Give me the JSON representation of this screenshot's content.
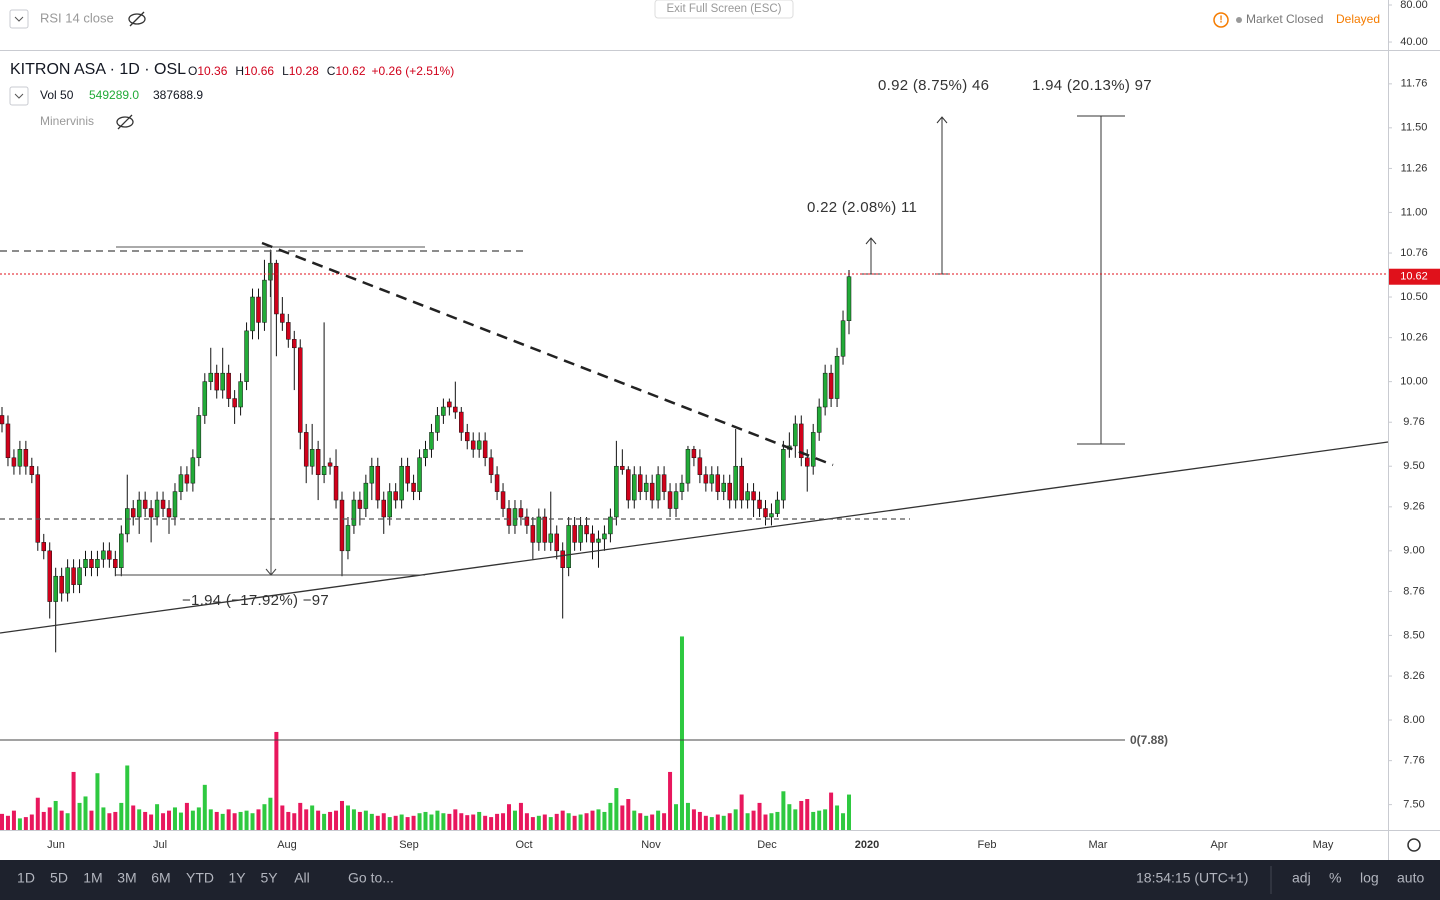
{
  "header": {
    "rsi_label": "RSI 14 close",
    "exit_fullscreen": "Exit Full Screen (ESC)",
    "market_status": "Market Closed",
    "delay": "Delayed",
    "symbol": "KITRON ASA · 1D · OSL",
    "o_label": "O",
    "o": "10.36",
    "h_label": "H",
    "h": "10.66",
    "l_label": "L",
    "l": "10.28",
    "c_label": "C",
    "c": "10.62",
    "change": "+0.26 (+2.51%)",
    "vol_label": "Vol 50",
    "vol_value": "549289.0",
    "vol_ma": "387688.9",
    "indicator": "Minervinis"
  },
  "chart_data": {
    "type": "candlestick",
    "up_color": "#22ab38",
    "down_color": "#d0011b",
    "volume_up_color": "#2ec940",
    "volume_down_color": "#e8175d",
    "grid": false,
    "ylim": [
      7.35,
      11.96
    ],
    "yticks": [
      11.76,
      {
        "value": 11.5,
        "label": "11.50"
      },
      11.26,
      {
        "value": 11,
        "label": "11.00"
      },
      10.76,
      {
        "value": 10.5,
        "label": "10.50"
      },
      10.26,
      {
        "value": 10,
        "label": "10.00"
      },
      9.76,
      {
        "value": 9.5,
        "label": "9.50"
      },
      9.26,
      {
        "value": 9,
        "label": "9.00"
      },
      8.76,
      {
        "value": 8.5,
        "label": "8.50"
      },
      8.26,
      {
        "value": 8,
        "label": "8.00"
      },
      7.76,
      {
        "value": 7.5,
        "label": "7.50"
      }
    ],
    "rsi_ylim": [
      31.4,
      85.4
    ],
    "rsi_yticks": [
      {
        "value": 80,
        "label": "80.00"
      },
      {
        "value": 40,
        "label": "40.00"
      }
    ],
    "volume_ylim": [
      0,
      12090000
    ],
    "last_price": {
      "value": 10.62,
      "label": "10.62"
    },
    "xticks": [
      "Jun",
      "Jul",
      "Aug",
      "Sep",
      "Oct",
      "Nov",
      "Dec",
      "2020",
      "Feb",
      "Mar",
      "Apr",
      "May"
    ],
    "open": [
      9.8,
      9.75,
      9.55,
      9.5,
      9.6,
      9.5,
      9.45,
      9.05,
      9.0,
      8.7,
      8.85,
      8.75,
      8.9,
      8.8,
      8.9,
      8.95,
      8.9,
      8.95,
      9.0,
      8.95,
      8.9,
      9.1,
      9.25,
      9.2,
      9.3,
      9.25,
      9.2,
      9.3,
      9.25,
      9.2,
      9.35,
      9.45,
      9.4,
      9.55,
      9.8,
      10.0,
      10.05,
      9.95,
      10.05,
      9.9,
      9.85,
      10.0,
      10.3,
      10.5,
      10.35,
      10.6,
      10.7,
      10.4,
      10.35,
      10.25,
      10.2,
      9.7,
      9.5,
      9.6,
      9.45,
      9.52,
      9.5,
      9.3,
      9.0,
      9.15,
      9.3,
      9.25,
      9.4,
      9.5,
      9.3,
      9.2,
      9.35,
      9.3,
      9.5,
      9.4,
      9.35,
      9.55,
      9.6,
      9.7,
      9.8,
      9.88,
      9.85,
      9.82,
      9.7,
      9.65,
      9.6,
      9.65,
      9.55,
      9.45,
      9.35,
      9.25,
      9.15,
      9.25,
      9.2,
      9.15,
      9.05,
      9.2,
      9.05,
      9.1,
      9.0,
      8.9,
      9.15,
      9.05,
      9.15,
      9.1,
      9.05,
      9.07,
      9.1,
      9.2,
      9.5,
      9.48,
      9.3,
      9.45,
      9.35,
      9.4,
      9.3,
      9.45,
      9.35,
      9.25,
      9.35,
      9.4,
      9.6,
      9.55,
      9.45,
      9.4,
      9.45,
      9.35,
      9.4,
      9.3,
      9.5,
      9.3,
      9.35,
      9.3,
      9.25,
      9.2,
      9.22,
      9.3,
      9.6,
      9.62,
      9.75,
      9.55,
      9.5,
      9.7,
      9.85,
      10.05,
      9.9,
      10.15,
      10.36
    ],
    "high": [
      9.85,
      9.8,
      9.6,
      9.65,
      9.65,
      9.55,
      9.5,
      9.1,
      9.05,
      8.9,
      8.9,
      8.95,
      8.95,
      8.95,
      9.0,
      9.0,
      9.0,
      9.05,
      9.05,
      9.0,
      9.15,
      9.45,
      9.3,
      9.35,
      9.35,
      9.3,
      9.35,
      9.35,
      9.3,
      9.4,
      9.5,
      9.5,
      9.6,
      9.85,
      10.05,
      10.2,
      10.1,
      10.2,
      10.1,
      9.95,
      10.05,
      10.35,
      10.55,
      10.55,
      10.72,
      10.78,
      10.72,
      10.5,
      10.4,
      10.3,
      10.25,
      9.75,
      9.75,
      9.65,
      10.35,
      9.55,
      9.6,
      9.35,
      9.2,
      9.35,
      9.35,
      9.45,
      9.55,
      9.55,
      9.35,
      9.4,
      9.4,
      9.55,
      9.55,
      9.45,
      9.6,
      9.65,
      9.75,
      9.85,
      9.9,
      9.9,
      10.0,
      9.85,
      9.75,
      9.7,
      9.7,
      9.7,
      9.6,
      9.5,
      9.4,
      9.3,
      9.3,
      9.3,
      9.25,
      9.2,
      9.25,
      9.25,
      9.35,
      9.15,
      9.05,
      9.2,
      9.2,
      9.2,
      9.2,
      9.15,
      9.12,
      9.15,
      9.25,
      9.65,
      9.6,
      9.5,
      9.5,
      9.5,
      9.45,
      9.45,
      9.5,
      9.5,
      9.4,
      9.4,
      9.45,
      9.62,
      9.62,
      9.6,
      9.5,
      9.5,
      9.5,
      9.45,
      9.45,
      9.72,
      9.55,
      9.4,
      9.4,
      9.35,
      9.3,
      9.28,
      9.35,
      9.65,
      9.7,
      9.8,
      9.8,
      9.6,
      9.75,
      9.9,
      10.1,
      10.1,
      10.2,
      10.42,
      10.66
    ],
    "low": [
      9.7,
      9.5,
      9.45,
      9.45,
      9.45,
      9.4,
      9.0,
      8.95,
      8.6,
      8.4,
      8.7,
      8.7,
      8.75,
      8.75,
      8.85,
      8.85,
      8.85,
      8.9,
      8.9,
      8.85,
      8.85,
      9.05,
      9.15,
      9.1,
      9.2,
      9.05,
      9.15,
      9.2,
      9.1,
      9.15,
      9.3,
      9.35,
      9.35,
      9.5,
      9.75,
      9.95,
      9.9,
      9.9,
      9.85,
      9.75,
      9.8,
      9.95,
      10.25,
      10.25,
      10.3,
      10.5,
      10.15,
      10.3,
      10.2,
      9.95,
      9.6,
      9.4,
      9.45,
      9.3,
      9.4,
      9.45,
      9.25,
      8.85,
      8.95,
      9.1,
      9.15,
      9.2,
      9.3,
      9.25,
      9.1,
      9.15,
      9.25,
      9.25,
      9.35,
      9.3,
      9.3,
      9.5,
      9.55,
      9.65,
      9.75,
      9.8,
      9.78,
      9.65,
      9.6,
      9.55,
      9.55,
      9.5,
      9.4,
      9.3,
      9.2,
      9.1,
      9.1,
      9.15,
      9.1,
      8.95,
      9.0,
      9.0,
      9.0,
      8.95,
      8.6,
      8.85,
      9.0,
      9.0,
      9.05,
      8.95,
      8.9,
      9.0,
      9.05,
      9.15,
      9.45,
      9.25,
      9.25,
      9.3,
      9.3,
      9.25,
      9.25,
      9.3,
      9.2,
      9.2,
      9.3,
      9.35,
      9.5,
      9.4,
      9.35,
      9.35,
      9.3,
      9.3,
      9.25,
      9.25,
      9.25,
      9.25,
      9.2,
      9.2,
      9.15,
      9.15,
      9.2,
      9.25,
      9.55,
      9.55,
      9.5,
      9.35,
      9.45,
      9.65,
      9.8,
      9.85,
      9.85,
      10.1,
      10.28
    ],
    "close": [
      9.75,
      9.55,
      9.5,
      9.6,
      9.5,
      9.45,
      9.05,
      9.0,
      8.7,
      8.85,
      8.75,
      8.9,
      8.8,
      8.9,
      8.95,
      8.9,
      8.95,
      9.0,
      8.95,
      8.9,
      9.1,
      9.25,
      9.2,
      9.3,
      9.25,
      9.2,
      9.3,
      9.25,
      9.2,
      9.35,
      9.45,
      9.4,
      9.55,
      9.8,
      10.0,
      10.05,
      9.95,
      10.05,
      9.9,
      9.85,
      10.0,
      10.3,
      10.5,
      10.35,
      10.6,
      10.7,
      10.4,
      10.35,
      10.25,
      10.2,
      9.7,
      9.5,
      9.6,
      9.45,
      9.5,
      9.5,
      9.3,
      9.0,
      9.15,
      9.3,
      9.25,
      9.4,
      9.5,
      9.3,
      9.2,
      9.35,
      9.3,
      9.5,
      9.4,
      9.35,
      9.55,
      9.6,
      9.7,
      9.8,
      9.85,
      9.85,
      9.82,
      9.7,
      9.65,
      9.6,
      9.65,
      9.55,
      9.45,
      9.35,
      9.25,
      9.15,
      9.25,
      9.2,
      9.15,
      9.05,
      9.2,
      9.05,
      9.1,
      9.0,
      8.9,
      9.15,
      9.05,
      9.15,
      9.1,
      9.05,
      9.07,
      9.1,
      9.2,
      9.5,
      9.48,
      9.3,
      9.45,
      9.35,
      9.4,
      9.3,
      9.45,
      9.35,
      9.25,
      9.35,
      9.4,
      9.6,
      9.55,
      9.45,
      9.4,
      9.45,
      9.35,
      9.4,
      9.3,
      9.5,
      9.3,
      9.35,
      9.3,
      9.25,
      9.2,
      9.22,
      9.3,
      9.6,
      9.62,
      9.75,
      9.55,
      9.5,
      9.7,
      9.85,
      10.05,
      9.9,
      10.15,
      10.36,
      10.62
    ],
    "volume": [
      250000,
      220000,
      300000,
      180000,
      200000,
      240000,
      500000,
      280000,
      350000,
      450000,
      300000,
      260000,
      900000,
      420000,
      520000,
      300000,
      880000,
      350000,
      260000,
      280000,
      420000,
      1000000,
      380000,
      320000,
      280000,
      240000,
      400000,
      260000,
      300000,
      350000,
      270000,
      420000,
      300000,
      350000,
      700000,
      320000,
      280000,
      250000,
      320000,
      260000,
      280000,
      300000,
      260000,
      320000,
      400000,
      500000,
      1520000,
      380000,
      280000,
      260000,
      420000,
      320000,
      380000,
      300000,
      250000,
      280000,
      300000,
      450000,
      380000,
      320000,
      280000,
      300000,
      250000,
      220000,
      260000,
      200000,
      220000,
      240000,
      200000,
      220000,
      260000,
      280000,
      240000,
      300000,
      260000,
      250000,
      320000,
      260000,
      230000,
      240000,
      280000,
      220000,
      200000,
      250000,
      260000,
      400000,
      300000,
      420000,
      260000,
      200000,
      220000,
      240000,
      200000,
      250000,
      300000,
      260000,
      220000,
      240000,
      260000,
      300000,
      320000,
      280000,
      420000,
      650000,
      380000,
      480000,
      300000,
      260000,
      220000,
      240000,
      300000,
      260000,
      900000,
      400000,
      3000000,
      420000,
      320000,
      280000,
      220000,
      200000,
      240000,
      220000,
      260000,
      320000,
      550000,
      260000,
      300000,
      420000,
      240000,
      260000,
      280000,
      600000,
      400000,
      320000,
      450000,
      480000,
      280000,
      300000,
      320000,
      580000,
      380000,
      260000,
      549289
    ],
    "annotations": [
      "0.92 (8.75%) 46",
      "1.94 (20.13%) 97",
      "0.22 (2.08%) 11",
      "−1.94 (−17.92%) −97",
      "0(7.88)"
    ]
  },
  "toolbar": {
    "ranges": [
      "1D",
      "5D",
      "1M",
      "3M",
      "6M",
      "YTD",
      "1Y",
      "5Y",
      "All"
    ],
    "goto": "Go to...",
    "clock": "18:54:15 (UTC+1)",
    "adj": "adj",
    "percent": "%",
    "log": "log",
    "auto": "auto"
  }
}
